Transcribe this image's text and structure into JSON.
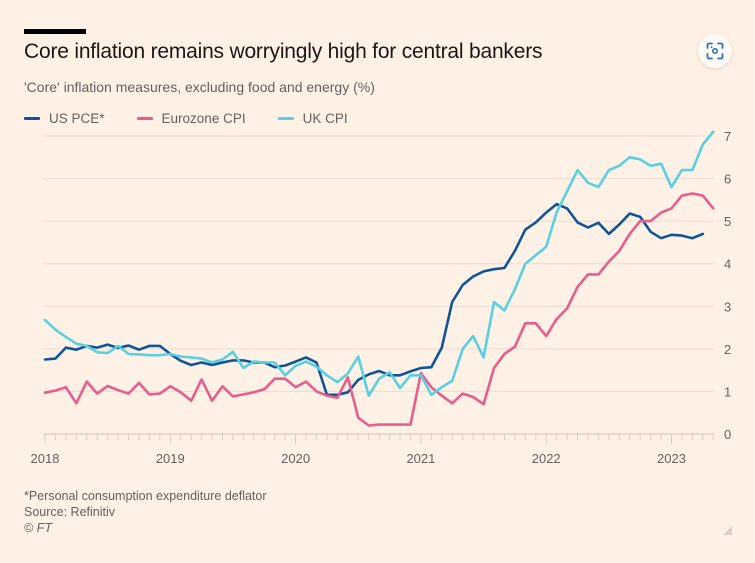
{
  "header": {
    "title": "Core inflation remains worryingly high for central bankers",
    "subtitle": "'Core' inflation measures, excluding food and energy (%)",
    "expand_icon": "scan-expand-icon"
  },
  "legend": [
    {
      "label": "US PCE*",
      "color": "#0f5499"
    },
    {
      "label": "Eurozone CPI",
      "color": "#e95d8c"
    },
    {
      "label": "UK CPI",
      "color": "#58d0e0"
    }
  ],
  "footer": {
    "note": "*Personal consumption expenditure deflator",
    "source": "Source: Refinitiv",
    "copyright": "© FT"
  },
  "chart_data": {
    "type": "line",
    "title": "Core inflation remains worryingly high for central bankers",
    "subtitle": "'Core' inflation measures, excluding food and energy (%)",
    "xlabel": "",
    "ylabel": "%",
    "x_start": "2018-01",
    "x_frequency": "monthly",
    "xticks": [
      "2018",
      "2019",
      "2020",
      "2021",
      "2022",
      "2023"
    ],
    "yticks": [
      0,
      1,
      2,
      3,
      4,
      5,
      6,
      7
    ],
    "ylim": [
      0,
      7
    ],
    "y_axis_side": "right",
    "grid": true,
    "legend_position": "top-left",
    "series": [
      {
        "name": "US PCE*",
        "color": "#0f5499",
        "values": [
          1.75,
          1.77,
          2.03,
          1.98,
          2.07,
          2.03,
          2.1,
          2.02,
          2.08,
          1.98,
          2.07,
          2.07,
          1.88,
          1.72,
          1.62,
          1.68,
          1.62,
          1.68,
          1.73,
          1.73,
          1.68,
          1.68,
          1.57,
          1.61,
          1.7,
          1.8,
          1.68,
          0.92,
          0.92,
          0.98,
          1.27,
          1.4,
          1.48,
          1.38,
          1.38,
          1.47,
          1.55,
          1.57,
          2.03,
          3.1,
          3.5,
          3.7,
          3.82,
          3.87,
          3.9,
          4.3,
          4.8,
          4.97,
          5.2,
          5.4,
          5.3,
          4.97,
          4.85,
          4.96,
          4.7,
          4.92,
          5.18,
          5.1,
          4.75,
          4.6,
          4.68,
          4.66,
          4.6,
          4.7
        ]
      },
      {
        "name": "Eurozone CPI",
        "color": "#e95d8c",
        "values": [
          0.97,
          1.02,
          1.1,
          0.72,
          1.23,
          0.95,
          1.13,
          1.03,
          0.95,
          1.2,
          0.93,
          0.95,
          1.12,
          0.98,
          0.78,
          1.28,
          0.78,
          1.12,
          0.88,
          0.93,
          0.98,
          1.05,
          1.3,
          1.3,
          1.1,
          1.23,
          1.0,
          0.9,
          0.85,
          1.33,
          0.38,
          0.2,
          0.22,
          0.22,
          0.22,
          0.22,
          1.43,
          1.1,
          0.9,
          0.72,
          0.95,
          0.87,
          0.7,
          1.55,
          1.88,
          2.05,
          2.6,
          2.6,
          2.3,
          2.7,
          2.95,
          3.45,
          3.75,
          3.75,
          4.05,
          4.3,
          4.7,
          5.0,
          5.0,
          5.2,
          5.3,
          5.6,
          5.65,
          5.6,
          5.3
        ]
      },
      {
        "name": "UK CPI",
        "color": "#58d0e0",
        "values": [
          2.68,
          2.45,
          2.28,
          2.12,
          2.07,
          1.92,
          1.9,
          2.07,
          1.88,
          1.87,
          1.85,
          1.85,
          1.88,
          1.82,
          1.8,
          1.77,
          1.68,
          1.75,
          1.93,
          1.55,
          1.7,
          1.68,
          1.68,
          1.38,
          1.6,
          1.7,
          1.58,
          1.38,
          1.22,
          1.42,
          1.82,
          0.9,
          1.3,
          1.45,
          1.08,
          1.38,
          1.38,
          0.92,
          1.1,
          1.25,
          2.0,
          2.3,
          1.8,
          3.1,
          2.9,
          3.4,
          4.0,
          4.2,
          4.4,
          5.2,
          5.7,
          6.2,
          5.9,
          5.8,
          6.2,
          6.3,
          6.5,
          6.45,
          6.3,
          6.35,
          5.8,
          6.2,
          6.2,
          6.8,
          7.1
        ]
      }
    ]
  }
}
